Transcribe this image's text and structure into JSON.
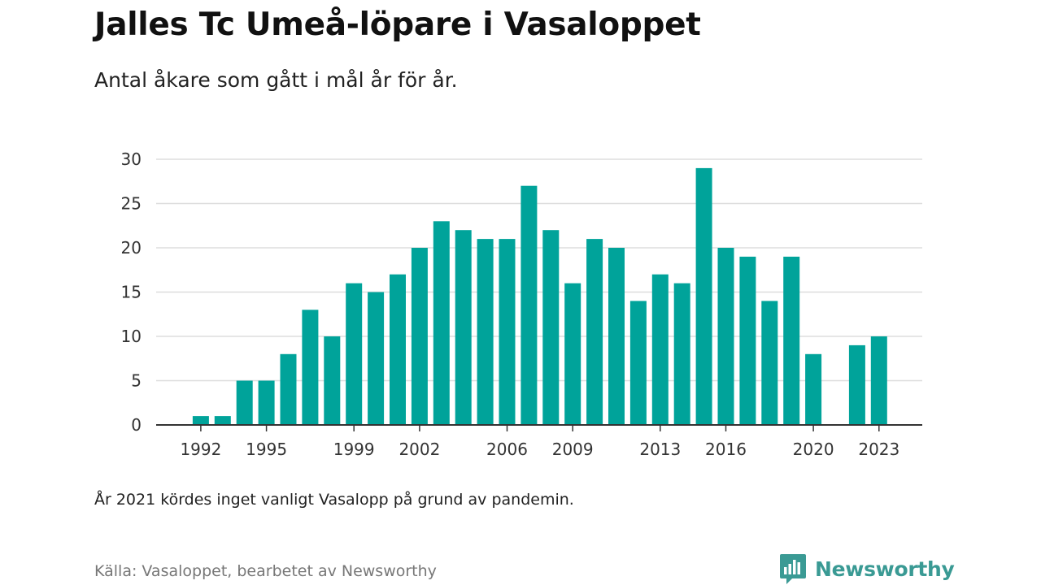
{
  "title": "Jalles Tc Umeå-löpare i Vasaloppet",
  "subtitle": "Antal åkare som gått i mål år för år.",
  "note": "År 2021 kördes inget vanligt Vasalopp på grund av pandemin.",
  "source": "Källa: Vasaloppet, bearbetet av Newsworthy",
  "brand": {
    "name": "Newsworthy",
    "color": "#3a9a94",
    "icon": "newsworthy-logo-icon"
  },
  "colors": {
    "bar": "#00a39a",
    "grid": "#dddddd",
    "axis": "#333333"
  },
  "chart_data": {
    "type": "bar",
    "x": [
      1991,
      1992,
      1993,
      1994,
      1995,
      1996,
      1997,
      1998,
      1999,
      2000,
      2001,
      2002,
      2003,
      2004,
      2005,
      2006,
      2007,
      2008,
      2009,
      2010,
      2011,
      2012,
      2013,
      2014,
      2015,
      2016,
      2017,
      2018,
      2019,
      2020,
      2021,
      2022,
      2023
    ],
    "values": [
      0,
      1,
      1,
      5,
      5,
      8,
      13,
      10,
      16,
      15,
      17,
      20,
      23,
      22,
      21,
      21,
      27,
      22,
      16,
      21,
      20,
      14,
      17,
      16,
      29,
      20,
      19,
      14,
      19,
      8,
      0,
      9,
      10
    ],
    "x_tick_labels": [
      "1992",
      "1995",
      "1999",
      "2002",
      "2006",
      "2009",
      "2013",
      "2016",
      "2020",
      "2023"
    ],
    "y_ticks": [
      0,
      5,
      10,
      15,
      20,
      25,
      30
    ],
    "ylim": [
      0,
      30
    ],
    "grid": true,
    "legend": "none"
  }
}
